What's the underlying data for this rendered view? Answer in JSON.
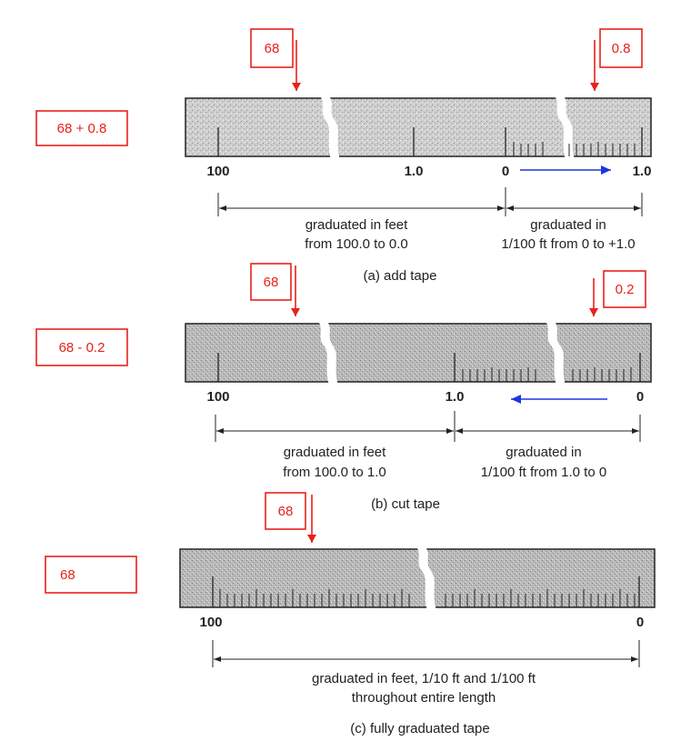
{
  "colors": {
    "annotation": "#e8211b",
    "direction_arrow": "#1f35e0",
    "tape_fill": "#c9c9c9",
    "ink": "#222222"
  },
  "panel_a": {
    "marker_left": "68",
    "marker_right": "0.8",
    "side_box": "68 + 0.8",
    "tick_label_1": "100",
    "tick_label_2": "1.0",
    "tick_label_3": "0",
    "tick_label_4": "1.0",
    "span_left_line1": "graduated in feet",
    "span_left_line2": "from 100.0 to 0.0",
    "span_right_line1": "graduated in",
    "span_right_line2": "1/100 ft from 0 to +1.0",
    "caption": "(a) add tape"
  },
  "panel_b": {
    "marker_left": "68",
    "marker_right": "0.2",
    "side_box": "68 - 0.2",
    "tick_label_1": "100",
    "tick_label_2": "1.0",
    "tick_label_3": "0",
    "span_left_line1": "graduated in feet",
    "span_left_line2": "from 100.0 to 1.0",
    "span_right_line1": "graduated in",
    "span_right_line2": "1/100 ft from 1.0 to 0",
    "caption": "(b) cut tape"
  },
  "panel_c": {
    "marker_left": "68",
    "side_box": "68",
    "tick_label_1": "100",
    "tick_label_2": "0",
    "span_line1": "graduated in feet, 1/10 ft and 1/100 ft",
    "span_line2": "throughout entire length",
    "caption": "(c) fully graduated tape"
  }
}
